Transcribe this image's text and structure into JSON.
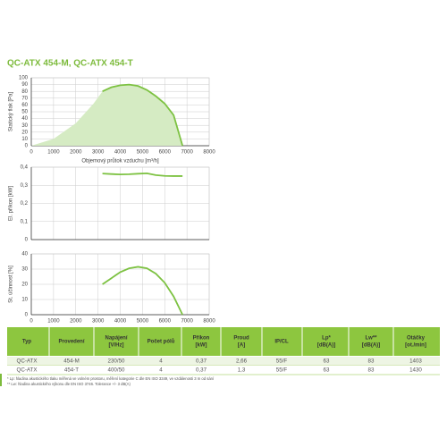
{
  "title": "QC-ATX 454-M, QC-ATX 454-T",
  "chart_data": [
    {
      "type": "line",
      "ylabel": "Statický tlak [Pa]",
      "xlabel": "Objemový průtok vzduchu [m³/h]",
      "xlim": [
        0,
        8000
      ],
      "xticks": [
        0,
        1000,
        2000,
        3000,
        4000,
        5000,
        6000,
        7000,
        8000
      ],
      "xtick_labels": true,
      "ylim": [
        0,
        100
      ],
      "yticks": [
        0,
        10,
        20,
        30,
        40,
        50,
        60,
        70,
        80,
        90,
        100
      ],
      "grid": true,
      "series": [
        {
          "kind": "area",
          "color": "#d5ebc3",
          "x": [
            0,
            1000,
            2000,
            2800,
            3200,
            3600,
            4000,
            4400,
            4800,
            5200,
            5600,
            6000,
            6400,
            6800
          ],
          "values": [
            0,
            10,
            33,
            62,
            80,
            86,
            89,
            90,
            88,
            82,
            73,
            62,
            45,
            0
          ]
        },
        {
          "kind": "line",
          "color": "#7dc242",
          "x": [
            3200,
            3600,
            4000,
            4400,
            4800,
            5200,
            5600,
            6000,
            6400,
            6800
          ],
          "values": [
            80,
            86,
            89,
            90,
            88,
            82,
            73,
            62,
            45,
            0
          ]
        }
      ]
    },
    {
      "type": "line",
      "ylabel": "El. příkon [kW]",
      "xlim": [
        0,
        8000
      ],
      "xticks": [
        0,
        1000,
        2000,
        3000,
        4000,
        5000,
        6000,
        7000,
        8000
      ],
      "xtick_labels": false,
      "ylim": [
        0,
        0.4
      ],
      "yticks": [
        0,
        {
          "value": 0.1,
          "label": "0,1"
        },
        {
          "value": 0.2,
          "label": "0,2"
        },
        {
          "value": 0.3,
          "label": "0,3"
        },
        {
          "value": 0.4,
          "label": "0,4"
        }
      ],
      "grid": true,
      "series": [
        {
          "kind": "line",
          "color": "#7dc242",
          "x": [
            3200,
            3600,
            4000,
            4400,
            4800,
            5200,
            5600,
            6000,
            6400,
            6800
          ],
          "values": [
            0.365,
            0.362,
            0.36,
            0.361,
            0.364,
            0.366,
            0.356,
            0.352,
            0.351,
            0.351
          ]
        }
      ]
    },
    {
      "type": "line",
      "ylabel": "St. účinnost [%]",
      "xlim": [
        0,
        8000
      ],
      "xticks": [
        0,
        1000,
        2000,
        3000,
        4000,
        5000,
        6000,
        7000,
        8000
      ],
      "xtick_labels": true,
      "ylim": [
        0,
        40
      ],
      "yticks": [
        0,
        10,
        20,
        30,
        40
      ],
      "grid": true,
      "series": [
        {
          "kind": "line",
          "color": "#7dc242",
          "x": [
            3200,
            3600,
            4000,
            4400,
            4800,
            5200,
            5600,
            6000,
            6400,
            6800
          ],
          "values": [
            20,
            24,
            28,
            30.5,
            31.5,
            30.5,
            27,
            21,
            12,
            0
          ]
        }
      ]
    }
  ],
  "table": {
    "header": [
      [
        "Typ"
      ],
      [
        "Provedení"
      ],
      [
        "Napájení",
        "[V/Hz]"
      ],
      [
        "Počet pólů"
      ],
      [
        "Příkon",
        "[kW]"
      ],
      [
        "Proud",
        "[A]"
      ],
      [
        "IP/CL"
      ],
      [
        "Lp*",
        "[dB(A)]"
      ],
      [
        "Lw**",
        "[dB(A)]"
      ],
      [
        "Otáčky",
        "[ot./min]"
      ]
    ],
    "rows": [
      [
        "QC-ATX",
        "454-M",
        "230/50",
        "4",
        "0,37",
        "2,66",
        "55/F",
        "63",
        "83",
        "1403"
      ],
      [
        "QC-ATX",
        "454-T",
        "400/50",
        "4",
        "0,37",
        "1,3",
        "55/F",
        "63",
        "83",
        "1430"
      ]
    ]
  },
  "footnotes": [
    "* Lp: hladina akustického tlaku měřená ve volném prostoru, měření kategorie C dle EN ISO 3349, ve vzdálenosti 3 m od sání",
    "** Lw: hladina akustického výkonu dle EN ISO 3746. Tolerance +/- 3 dB(A)"
  ]
}
